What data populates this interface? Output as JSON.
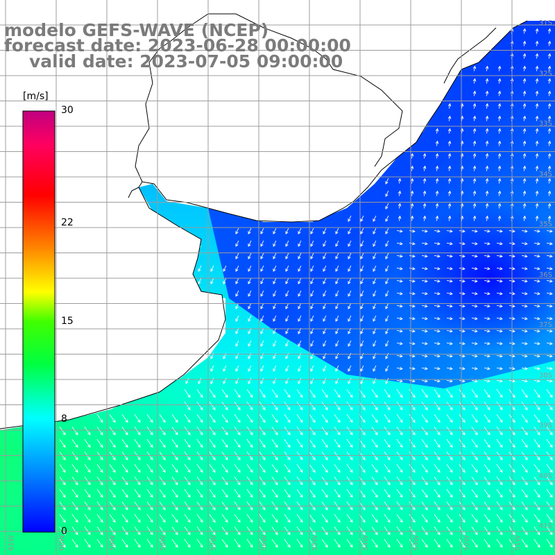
{
  "title": {
    "line1": "modelo GEFS-WAVE (NCEP)",
    "line2": "forecast date: 2023-06-28 00:00:00",
    "line3": "valid date: 2023-07-05 09:00:00"
  },
  "colorbar": {
    "unit": "[m/s]",
    "ticks": [
      {
        "label": "30",
        "value": 30
      },
      {
        "label": "22",
        "value": 22
      },
      {
        "label": "15",
        "value": 15
      },
      {
        "label": "8",
        "value": 8
      },
      {
        "label": "0",
        "value": 0
      }
    ],
    "colors": [
      "#0000ff",
      "#00a0ff",
      "#00ffff",
      "#00ff40",
      "#20ff00",
      "#ffff00",
      "#ff8000",
      "#ff0000",
      "#ff0080",
      "#c00080"
    ]
  },
  "lat_labels": [
    "31S",
    "32S",
    "33S",
    "34S",
    "35S",
    "36S",
    "37S",
    "38S",
    "39S",
    "40S",
    "41S"
  ],
  "lon_labels": [
    "61W",
    "60W",
    "59W",
    "58W",
    "57W",
    "56W",
    "55W",
    "54W",
    "53W",
    "52W",
    "51W"
  ],
  "map": {
    "region": "Rio de la Plata / Uruguay / south Brazil coast",
    "field": "wind speed and direction",
    "colors": {
      "land": "#ffffff",
      "grid": "#9c9c9c",
      "coast": "#000000",
      "arrow": "#ffffff"
    }
  }
}
